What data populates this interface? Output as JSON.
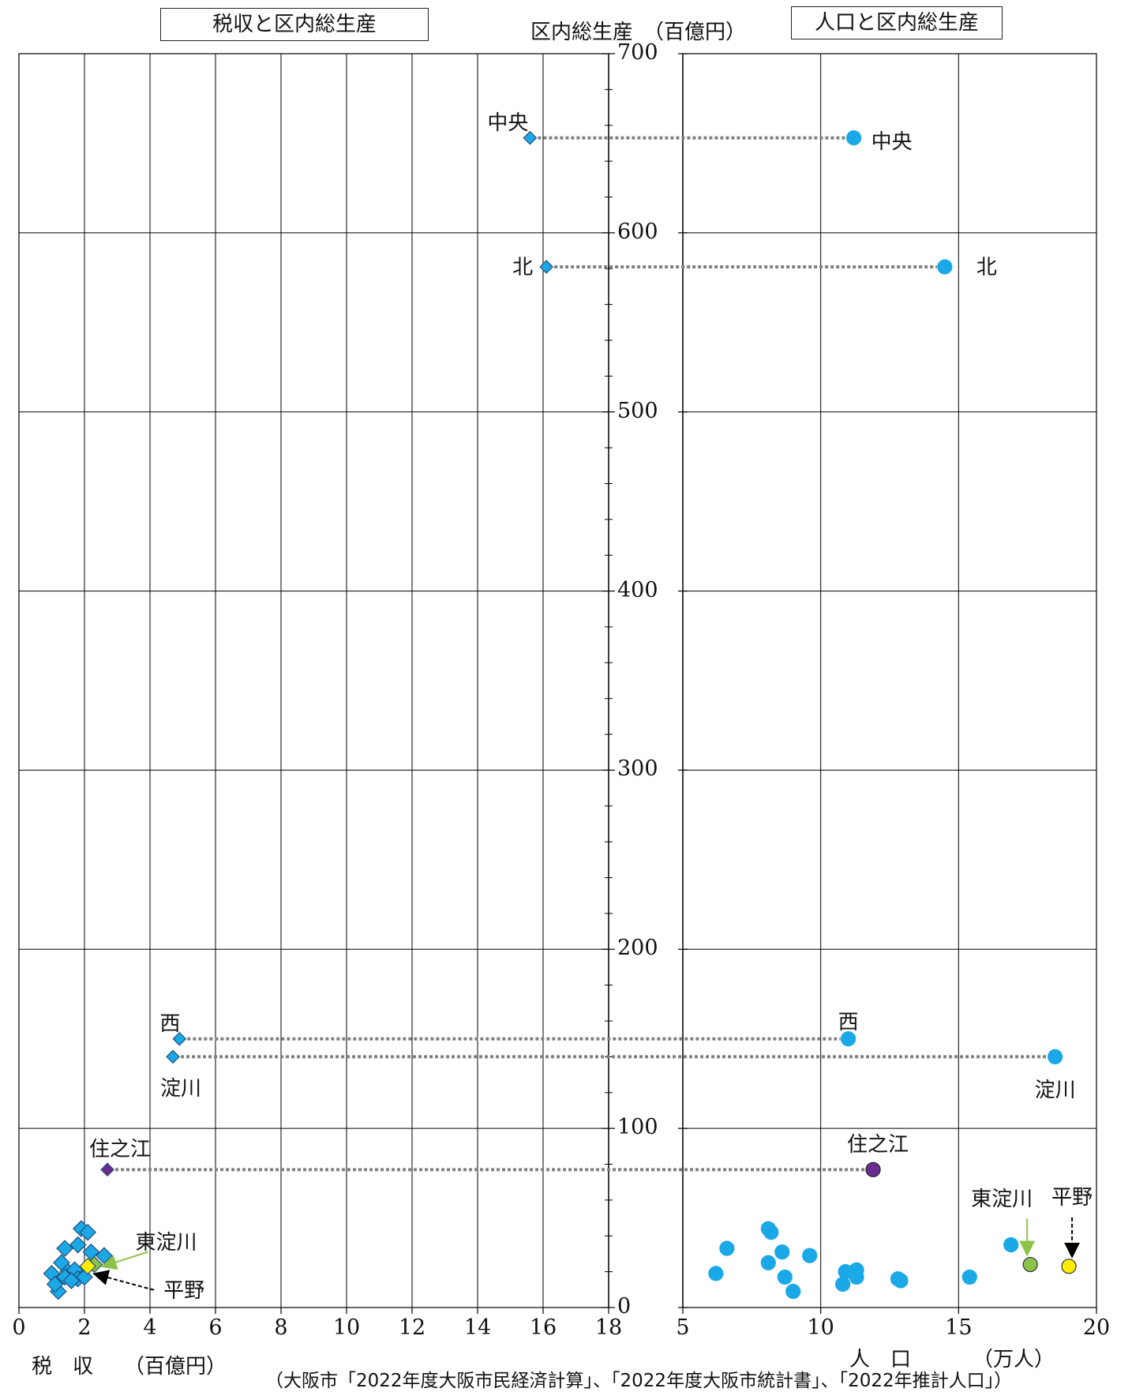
{
  "chart_data": {
    "type": "scatter",
    "titles": {
      "left": "税収と区内総生産",
      "right": "人口と区内総生産"
    },
    "ylabel": "区内総生産　（百億円）",
    "ylim": [
      0,
      700
    ],
    "yticks": [
      0,
      100,
      200,
      300,
      400,
      500,
      600,
      700
    ],
    "grid": true,
    "left_panel": {
      "xlabel": "税　収　　（百億円）",
      "xlim": [
        0,
        18
      ],
      "xticks": [
        0,
        2,
        4,
        6,
        8,
        10,
        12,
        14,
        16,
        18
      ]
    },
    "right_panel": {
      "xlabel": "人　口",
      "xunit": "（万人）",
      "xlim": [
        5,
        20
      ],
      "xticks": [
        5,
        10,
        15,
        20
      ]
    },
    "highlighted": [
      {
        "name": "中央",
        "tax": 15.6,
        "pop": 11.2,
        "gdp": 653,
        "color": "#1ba8e6"
      },
      {
        "name": "北",
        "tax": 16.1,
        "pop": 14.5,
        "gdp": 581,
        "color": "#1ba8e6"
      },
      {
        "name": "西",
        "tax": 4.9,
        "pop": 11.0,
        "gdp": 150,
        "color": "#1ba8e6"
      },
      {
        "name": "淀川",
        "tax": 4.7,
        "pop": 18.5,
        "gdp": 140,
        "color": "#1ba8e6"
      },
      {
        "name": "住之江",
        "tax": 2.7,
        "pop": 11.9,
        "gdp": 77,
        "color": "#6a2c91"
      },
      {
        "name": "東淀川",
        "tax": 2.3,
        "pop": 17.6,
        "gdp": 24,
        "color": "#8bc34a"
      },
      {
        "name": "平野",
        "tax": 2.1,
        "pop": 19.0,
        "gdp": 23,
        "color": "#ffee00"
      }
    ],
    "others": [
      {
        "tax": 1.0,
        "pop": 6.2,
        "gdp": 19
      },
      {
        "tax": 1.4,
        "pop": 6.6,
        "gdp": 33
      },
      {
        "tax": 1.9,
        "pop": 8.1,
        "gdp": 44
      },
      {
        "tax": 2.1,
        "pop": 8.2,
        "gdp": 42
      },
      {
        "tax": 1.3,
        "pop": 8.1,
        "gdp": 25
      },
      {
        "tax": 2.2,
        "pop": 8.6,
        "gdp": 31
      },
      {
        "tax": 1.6,
        "pop": 8.7,
        "gdp": 17
      },
      {
        "tax": 1.2,
        "pop": 9.0,
        "gdp": 9
      },
      {
        "tax": 2.6,
        "pop": 9.6,
        "gdp": 29
      },
      {
        "tax": 1.1,
        "pop": 10.8,
        "gdp": 13
      },
      {
        "tax": 1.5,
        "pop": 10.9,
        "gdp": 20
      },
      {
        "tax": 1.7,
        "pop": 11.3,
        "gdp": 21
      },
      {
        "tax": 1.4,
        "pop": 11.3,
        "gdp": 17
      },
      {
        "tax": 1.8,
        "pop": 12.8,
        "gdp": 16
      },
      {
        "tax": 1.6,
        "pop": 12.9,
        "gdp": 15
      },
      {
        "tax": 2.0,
        "pop": 15.4,
        "gdp": 17
      },
      {
        "tax": 1.8,
        "pop": 16.9,
        "gdp": 35
      }
    ]
  },
  "source": "（大阪市「2022年度大阪市民経済計算」、「2022年度大阪市統計書」、「2022年推計人口」）"
}
